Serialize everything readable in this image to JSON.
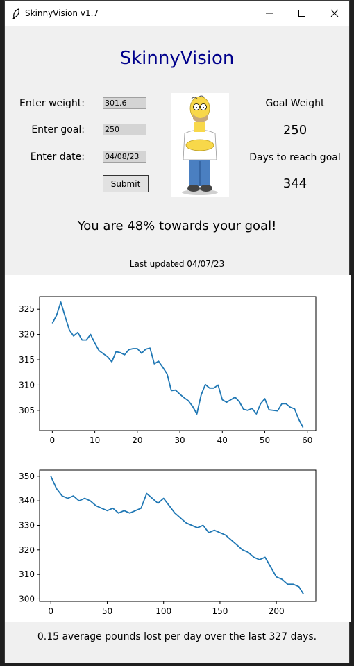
{
  "window": {
    "title": "SkinnyVision v1.7"
  },
  "app": {
    "title": "SkinnyVision"
  },
  "form": {
    "weight_label": "Enter weight:",
    "weight_value": "301.6",
    "goal_label": "Enter goal:",
    "goal_value": "250",
    "date_label": "Enter date:",
    "date_value": "04/08/23",
    "submit_label": "Submit"
  },
  "stats": {
    "goal_weight_label": "Goal Weight",
    "goal_weight_value": "250",
    "days_label": "Days to reach goal",
    "days_value": "344"
  },
  "progress_text": "You are 48% towards your goal!",
  "last_updated": "Last updated 04/07/23",
  "footer_text": "0.15 average pounds lost per day over the last 327 days.",
  "colors": {
    "title": "#00008b",
    "line": "#1f77b4"
  },
  "chart_data": [
    {
      "type": "line",
      "x_ticks": [
        0,
        10,
        20,
        30,
        40,
        50,
        60
      ],
      "y_ticks": [
        305,
        310,
        315,
        320,
        325
      ],
      "xlim": [
        -3,
        62
      ],
      "ylim": [
        301,
        327.5
      ],
      "series": [
        {
          "x": [
            0,
            1,
            2,
            3,
            4,
            5,
            6,
            7,
            8,
            9,
            10,
            11,
            12,
            13,
            14,
            15,
            16,
            17,
            18,
            19,
            20,
            21,
            22,
            23,
            24,
            25,
            26,
            27,
            28,
            29,
            30,
            31,
            32,
            33,
            34,
            35,
            36,
            37,
            38,
            39,
            40,
            41,
            42,
            43,
            44,
            45,
            46,
            47,
            48,
            49,
            50,
            51,
            52,
            53,
            54,
            55,
            56,
            57,
            58,
            59
          ],
          "y": [
            322.2,
            323.8,
            326.4,
            323.6,
            320.9,
            319.7,
            320.4,
            318.9,
            318.9,
            320,
            318.3,
            316.8,
            316.2,
            315.6,
            314.6,
            316.6,
            316.4,
            316,
            317,
            317.2,
            317.2,
            316.3,
            317.1,
            317.3,
            314.2,
            314.7,
            313.5,
            312.2,
            308.9,
            309,
            308.2,
            307.5,
            306.9,
            305.8,
            304.3,
            308,
            310.1,
            309.4,
            309.4,
            310,
            307.1,
            306.6,
            307.1,
            307.6,
            306.7,
            305.2,
            305,
            305.4,
            304.3,
            306.3,
            307.3,
            305.1,
            305,
            304.9,
            306.3,
            306.3,
            305.6,
            305.3,
            303.2,
            301.6
          ]
        }
      ]
    },
    {
      "type": "line",
      "x_ticks": [
        0,
        50,
        100,
        150,
        200
      ],
      "y_ticks": [
        300,
        310,
        320,
        330,
        340,
        350
      ],
      "xlim": [
        -10,
        235
      ],
      "ylim": [
        299,
        352.5
      ],
      "series": [
        {
          "x": [
            0,
            5,
            10,
            15,
            20,
            25,
            30,
            35,
            40,
            45,
            50,
            55,
            60,
            65,
            70,
            75,
            80,
            85,
            90,
            95,
            100,
            105,
            110,
            115,
            120,
            125,
            130,
            135,
            140,
            145,
            150,
            155,
            160,
            165,
            170,
            175,
            180,
            185,
            190,
            195,
            200,
            205,
            210,
            215,
            220,
            224
          ],
          "y": [
            350,
            345,
            342,
            341,
            342,
            340,
            341,
            340,
            338,
            337,
            336,
            337,
            335,
            336,
            335,
            336,
            337,
            343,
            341,
            339,
            341,
            338,
            335,
            333,
            331,
            330,
            329,
            330,
            327,
            328,
            327,
            326,
            324,
            322,
            320,
            319,
            317,
            316,
            317,
            313,
            309,
            308,
            306,
            306,
            305,
            302
          ]
        }
      ]
    }
  ]
}
